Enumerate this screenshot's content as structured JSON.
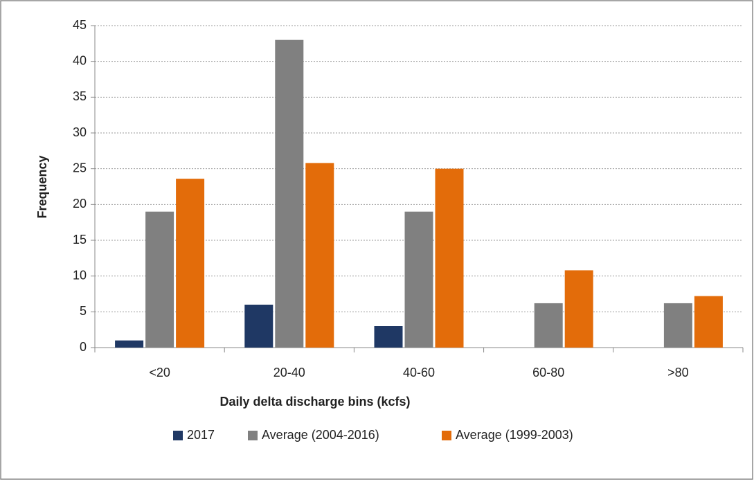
{
  "chart_data": {
    "type": "bar",
    "x_label": "Daily delta discharge bins (kcfs)",
    "y_label": "Frequency",
    "categories": [
      "<20",
      "20-40",
      "40-60",
      "60-80",
      ">80"
    ],
    "series": [
      {
        "name": "2017",
        "color": "#1f3864",
        "values": [
          1,
          6,
          3,
          0,
          0
        ]
      },
      {
        "name": "Average (2004-2016)",
        "color": "#808080",
        "values": [
          19,
          43,
          19,
          6.2,
          6.2
        ]
      },
      {
        "name": "Average (1999-2003)",
        "color": "#e36c0a",
        "values": [
          23.6,
          25.8,
          25,
          10.8,
          7.2
        ]
      }
    ],
    "ylim": [
      0,
      45
    ],
    "yticks": [
      0,
      5,
      10,
      15,
      20,
      25,
      30,
      35,
      40,
      45
    ],
    "grid": true,
    "legend": "bottom"
  }
}
